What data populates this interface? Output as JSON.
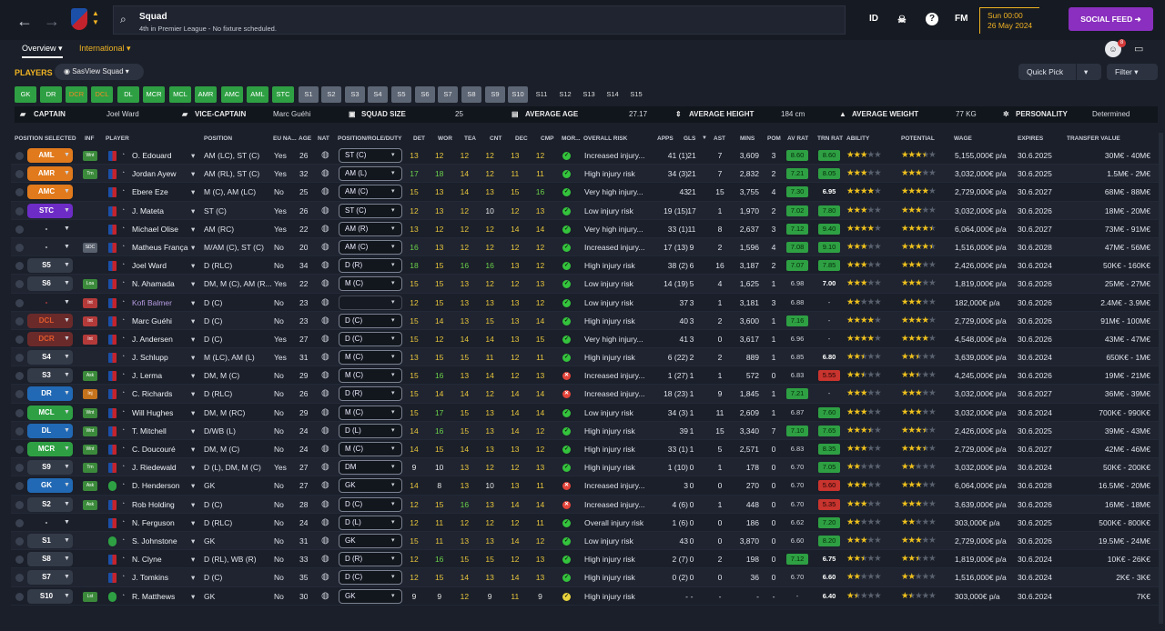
{
  "header": {
    "title": "Squad",
    "subtitle": "4th in Premier League - No fixture scheduled.",
    "icons": [
      "back-arrow-icon",
      "forward-arrow-icon",
      "club-crest-icon",
      "search-icon"
    ],
    "id_label": "ID",
    "fm_label": "FM",
    "date_line1": "Sun 00:00",
    "date_line2": "26 May 2024",
    "feed_label": "SOCIAL FEED",
    "notif_count": "8"
  },
  "tabs": {
    "overview": "Overview",
    "international": "International"
  },
  "toolbar": {
    "players": "PLAYERS",
    "view": "SasView Squad",
    "quick_pick": "Quick Pick",
    "filter": "Filter"
  },
  "slots": [
    "GK",
    "DR",
    "DCR",
    "DCL",
    "DL",
    "MCR",
    "MCL",
    "AMR",
    "AMC",
    "AML",
    "STC",
    "S1",
    "S2",
    "S3",
    "S4",
    "S5",
    "S6",
    "S7",
    "S8",
    "S9",
    "S10",
    "S11",
    "S12",
    "S13",
    "S14",
    "S15"
  ],
  "info": {
    "captain_lbl": "CAPTAIN",
    "captain": "Joel Ward",
    "vice_lbl": "VICE-CAPTAIN",
    "vice": "Marc Guéhi",
    "size_lbl": "SQUAD SIZE",
    "size": "25",
    "age_lbl": "AVERAGE AGE",
    "age": "27.17",
    "height_lbl": "AVERAGE HEIGHT",
    "height": "184 cm",
    "weight_lbl": "AVERAGE WEIGHT",
    "weight": "77 KG",
    "pers_lbl": "PERSONALITY",
    "pers": "Determined"
  },
  "columns": [
    "POSITION SELECTED",
    "INF",
    "PLAYER",
    "POSITION",
    "EU NA...",
    "AGE",
    "NAT",
    "POSITION/ROLE/DUTY",
    "DET",
    "WOR",
    "TEA",
    "CNT",
    "DEC",
    "CMP",
    "MOR...",
    "OVERALL RISK",
    "APPS",
    "GLS",
    "AST",
    "MINS",
    "POM",
    "AV RAT",
    "TRN RAT",
    "ABILITY",
    "POTENTIAL",
    "WAGE",
    "EXPIRES",
    "TRANSFER VALUE"
  ],
  "players": [
    {
      "sel": "AML",
      "selc": "orange",
      "inf": "Wnt",
      "infc": "green",
      "name": "O. Edouard",
      "pos": "AM (LC), ST (C)",
      "eu": "Yes",
      "age": "26",
      "role": "ST (C)",
      "det": "13",
      "wor": "12",
      "tea": "12",
      "cnt": "12",
      "dec": "13",
      "cmp": "12",
      "mor": "good",
      "risk": "Increased injury...",
      "apps": "41 (1)",
      "gls": "21",
      "ast": "7",
      "mins": "3,609",
      "pom": "3",
      "avr": "8.60",
      "avrc": "green",
      "trn": "8.60",
      "trnc": "green",
      "ab": 3,
      "pot": 3.5,
      "wage": "5,155,000€ p/a",
      "exp": "30.6.2025",
      "val": "30M€ - 40M€"
    },
    {
      "sel": "AMR",
      "selc": "orange",
      "inf": "Trn",
      "infc": "green",
      "name": "Jordan Ayew",
      "pos": "AM (RL), ST (C)",
      "eu": "Yes",
      "age": "32",
      "role": "AM (L)",
      "det": "17",
      "wor": "18",
      "tea": "14",
      "cnt": "12",
      "dec": "11",
      "cmp": "11",
      "mor": "good",
      "risk": "High injury risk",
      "apps": "34 (3)",
      "gls": "21",
      "ast": "7",
      "mins": "2,832",
      "pom": "2",
      "avr": "7.21",
      "avrc": "green",
      "trn": "8.05",
      "trnc": "green",
      "ab": 3,
      "pot": 3,
      "wage": "3,032,000€ p/a",
      "exp": "30.6.2025",
      "val": "1.5M€ - 2M€"
    },
    {
      "sel": "AMC",
      "selc": "orange",
      "inf": "",
      "infc": "",
      "name": "Ebere Eze",
      "pos": "M (C), AM (LC)",
      "eu": "No",
      "age": "25",
      "role": "AM (C)",
      "det": "15",
      "wor": "13",
      "tea": "14",
      "cnt": "13",
      "dec": "15",
      "cmp": "16",
      "mor": "good",
      "risk": "Very high injury...",
      "apps": "43",
      "gls": "21",
      "ast": "15",
      "mins": "3,755",
      "pom": "4",
      "avr": "7.30",
      "avrc": "green",
      "trn": "6.95",
      "trnc": "bold",
      "ab": 4,
      "pot": 4,
      "wage": "2,729,000€ p/a",
      "exp": "30.6.2027",
      "val": "68M€ - 88M€"
    },
    {
      "sel": "STC",
      "selc": "purple",
      "inf": "",
      "infc": "",
      "name": "J. Mateta",
      "pos": "ST (C)",
      "eu": "Yes",
      "age": "26",
      "role": "ST (C)",
      "det": "12",
      "wor": "13",
      "tea": "12",
      "cnt": "10",
      "dec": "12",
      "cmp": "13",
      "mor": "good",
      "risk": "Low injury risk",
      "apps": "19 (15)",
      "gls": "17",
      "ast": "1",
      "mins": "1,970",
      "pom": "2",
      "avr": "7.02",
      "avrc": "green",
      "trn": "7.80",
      "trnc": "green",
      "ab": 3,
      "pot": 3,
      "wage": "3,032,000€ p/a",
      "exp": "30.6.2026",
      "val": "18M€ - 20M€"
    },
    {
      "sel": "-",
      "selc": "dash",
      "inf": "",
      "infc": "",
      "name": "Michael Olise",
      "pos": "AM (RC)",
      "eu": "Yes",
      "age": "22",
      "role": "AM (R)",
      "det": "13",
      "wor": "12",
      "tea": "12",
      "cnt": "12",
      "dec": "14",
      "cmp": "14",
      "mor": "good",
      "risk": "Very high injury...",
      "apps": "33 (1)",
      "gls": "11",
      "ast": "8",
      "mins": "2,637",
      "pom": "3",
      "avr": "7.12",
      "avrc": "green",
      "trn": "9.40",
      "trnc": "green",
      "ab": 4,
      "pot": 4.5,
      "wage": "6,064,000€ p/a",
      "exp": "30.6.2027",
      "val": "73M€ - 91M€"
    },
    {
      "sel": "-",
      "selc": "dash",
      "inf": "SDC",
      "infc": "grey",
      "name": "Matheus França",
      "pos": "M/AM (C), ST (C)",
      "eu": "No",
      "age": "20",
      "role": "AM (C)",
      "det": "16",
      "wor": "13",
      "tea": "12",
      "cnt": "12",
      "dec": "12",
      "cmp": "12",
      "mor": "good",
      "risk": "Increased injury...",
      "apps": "17 (13)",
      "gls": "9",
      "ast": "2",
      "mins": "1,596",
      "pom": "4",
      "avr": "7.08",
      "avrc": "green",
      "trn": "9.10",
      "trnc": "green",
      "ab": 3,
      "pot": 4.5,
      "wage": "1,516,000€ p/a",
      "exp": "30.6.2028",
      "val": "47M€ - 56M€"
    },
    {
      "sel": "S5",
      "selc": "grey",
      "inf": "",
      "infc": "",
      "name": "Joel Ward",
      "pos": "D (RLC)",
      "eu": "No",
      "age": "34",
      "role": "D (R)",
      "det": "18",
      "wor": "15",
      "tea": "16",
      "cnt": "16",
      "dec": "13",
      "cmp": "12",
      "mor": "good",
      "risk": "High injury risk",
      "apps": "38 (2)",
      "gls": "6",
      "ast": "16",
      "mins": "3,187",
      "pom": "2",
      "avr": "7.07",
      "avrc": "green",
      "trn": "7.85",
      "trnc": "green",
      "ab": 3,
      "pot": 3,
      "wage": "2,426,000€ p/a",
      "exp": "30.6.2024",
      "val": "50K€ - 160K€"
    },
    {
      "sel": "S6",
      "selc": "grey",
      "inf": "Loa",
      "infc": "green",
      "name": "N. Ahamada",
      "pos": "DM, M (C), AM (R...",
      "eu": "Yes",
      "age": "22",
      "role": "M (C)",
      "det": "15",
      "wor": "15",
      "tea": "13",
      "cnt": "12",
      "dec": "12",
      "cmp": "13",
      "mor": "good",
      "risk": "Low injury risk",
      "apps": "14 (19)",
      "gls": "5",
      "ast": "4",
      "mins": "1,625",
      "pom": "1",
      "avr": "6.98",
      "avrc": "plain",
      "trn": "7.00",
      "trnc": "bold",
      "ab": 3,
      "pot": 3,
      "wage": "1,819,000€ p/a",
      "exp": "30.6.2026",
      "val": "25M€ - 27M€"
    },
    {
      "sel": "-",
      "selc": "ghost",
      "inf": "Int",
      "infc": "red",
      "name": "Kofi Balmer",
      "pos": "D (C)",
      "eu": "No",
      "age": "23",
      "role": "",
      "det": "12",
      "wor": "15",
      "tea": "13",
      "cnt": "13",
      "dec": "13",
      "cmp": "12",
      "mor": "good",
      "risk": "Low injury risk",
      "apps": "37",
      "gls": "3",
      "ast": "1",
      "mins": "3,181",
      "pom": "3",
      "avr": "6.88",
      "avrc": "plain",
      "trn": "-",
      "trnc": "plain",
      "ab": 2,
      "pot": 3,
      "wage": "182,000€ p/a",
      "exp": "30.6.2026",
      "val": "2.4M€ - 3.9M€"
    },
    {
      "sel": "DCL",
      "selc": "red",
      "inf": "Int",
      "infc": "red",
      "name": "Marc Guéhi",
      "pos": "D (C)",
      "eu": "No",
      "age": "23",
      "role": "D (C)",
      "det": "15",
      "wor": "14",
      "tea": "13",
      "cnt": "15",
      "dec": "13",
      "cmp": "14",
      "mor": "good",
      "risk": "High injury risk",
      "apps": "40",
      "gls": "3",
      "ast": "2",
      "mins": "3,600",
      "pom": "1",
      "avr": "7.16",
      "avrc": "green",
      "trn": "-",
      "trnc": "plain",
      "ab": 4,
      "pot": 4,
      "wage": "2,729,000€ p/a",
      "exp": "30.6.2026",
      "val": "91M€ - 100M€"
    },
    {
      "sel": "DCR",
      "selc": "red",
      "inf": "Int",
      "infc": "red",
      "name": "J. Andersen",
      "pos": "D (C)",
      "eu": "Yes",
      "age": "27",
      "role": "D (C)",
      "det": "15",
      "wor": "12",
      "tea": "14",
      "cnt": "14",
      "dec": "13",
      "cmp": "15",
      "mor": "good",
      "risk": "Very high injury...",
      "apps": "41",
      "gls": "3",
      "ast": "0",
      "mins": "3,617",
      "pom": "1",
      "avr": "6.96",
      "avrc": "plain",
      "trn": "-",
      "trnc": "plain",
      "ab": 4,
      "pot": 4,
      "wage": "4,548,000€ p/a",
      "exp": "30.6.2026",
      "val": "43M€ - 47M€"
    },
    {
      "sel": "S4",
      "selc": "grey",
      "inf": "",
      "infc": "",
      "name": "J. Schlupp",
      "pos": "M (LC), AM (L)",
      "eu": "Yes",
      "age": "31",
      "role": "M (C)",
      "det": "13",
      "wor": "15",
      "tea": "15",
      "cnt": "11",
      "dec": "12",
      "cmp": "11",
      "mor": "good",
      "risk": "High injury risk",
      "apps": "6 (22)",
      "gls": "2",
      "ast": "2",
      "mins": "889",
      "pom": "1",
      "avr": "6.85",
      "avrc": "plain",
      "trn": "6.80",
      "trnc": "bold",
      "ab": 2.5,
      "pot": 2.5,
      "wage": "3,639,000€ p/a",
      "exp": "30.6.2024",
      "val": "650K€ - 1M€"
    },
    {
      "sel": "S3",
      "selc": "grey",
      "inf": "Ask",
      "infc": "green",
      "name": "J. Lerma",
      "pos": "DM, M (C)",
      "eu": "No",
      "age": "29",
      "role": "M (C)",
      "det": "15",
      "wor": "16",
      "tea": "13",
      "cnt": "14",
      "dec": "12",
      "cmp": "13",
      "mor": "bad",
      "risk": "Increased injury...",
      "apps": "1 (27)",
      "gls": "1",
      "ast": "1",
      "mins": "572",
      "pom": "0",
      "avr": "6.83",
      "avrc": "plain",
      "trn": "5.55",
      "trnc": "red",
      "ab": 2.5,
      "pot": 2.5,
      "wage": "4,245,000€ p/a",
      "exp": "30.6.2026",
      "val": "19M€ - 21M€"
    },
    {
      "sel": "DR",
      "selc": "blue",
      "inf": "Inj",
      "infc": "orange",
      "name": "C. Richards",
      "pos": "D (RLC)",
      "eu": "No",
      "age": "26",
      "role": "D (R)",
      "det": "15",
      "wor": "14",
      "tea": "14",
      "cnt": "12",
      "dec": "14",
      "cmp": "14",
      "mor": "bad",
      "risk": "Increased injury...",
      "apps": "18 (23)",
      "gls": "1",
      "ast": "9",
      "mins": "1,845",
      "pom": "1",
      "avr": "7.21",
      "avrc": "green",
      "trn": "-",
      "trnc": "plain",
      "ab": 3,
      "pot": 3,
      "wage": "3,032,000€ p/a",
      "exp": "30.6.2027",
      "val": "36M€ - 39M€"
    },
    {
      "sel": "MCL",
      "selc": "green",
      "inf": "Wnt",
      "infc": "green",
      "name": "Will Hughes",
      "pos": "DM, M (RC)",
      "eu": "No",
      "age": "29",
      "role": "M (C)",
      "det": "15",
      "wor": "17",
      "tea": "15",
      "cnt": "13",
      "dec": "14",
      "cmp": "14",
      "mor": "good",
      "risk": "Low injury risk",
      "apps": "34 (3)",
      "gls": "1",
      "ast": "11",
      "mins": "2,609",
      "pom": "1",
      "avr": "6.87",
      "avrc": "plain",
      "trn": "7.60",
      "trnc": "green",
      "ab": 3,
      "pot": 3,
      "wage": "3,032,000€ p/a",
      "exp": "30.6.2024",
      "val": "700K€ - 990K€"
    },
    {
      "sel": "DL",
      "selc": "blue",
      "inf": "Wnt",
      "infc": "green",
      "name": "T. Mitchell",
      "pos": "D/WB (L)",
      "eu": "No",
      "age": "24",
      "role": "D (L)",
      "det": "14",
      "wor": "16",
      "tea": "15",
      "cnt": "13",
      "dec": "14",
      "cmp": "12",
      "mor": "good",
      "risk": "High injury risk",
      "apps": "39",
      "gls": "1",
      "ast": "15",
      "mins": "3,340",
      "pom": "7",
      "avr": "7.10",
      "avrc": "green",
      "trn": "7.65",
      "trnc": "green",
      "ab": 3.5,
      "pot": 3.5,
      "wage": "2,426,000€ p/a",
      "exp": "30.6.2025",
      "val": "39M€ - 43M€"
    },
    {
      "sel": "MCR",
      "selc": "green",
      "inf": "Wnt",
      "infc": "green",
      "name": "C. Doucouré",
      "pos": "DM, M (C)",
      "eu": "No",
      "age": "24",
      "role": "M (C)",
      "det": "14",
      "wor": "15",
      "tea": "14",
      "cnt": "13",
      "dec": "13",
      "cmp": "12",
      "mor": "good",
      "risk": "High injury risk",
      "apps": "33 (1)",
      "gls": "1",
      "ast": "5",
      "mins": "2,571",
      "pom": "0",
      "avr": "6.83",
      "avrc": "plain",
      "trn": "8.35",
      "trnc": "green",
      "ab": 3,
      "pot": 3.5,
      "wage": "2,729,000€ p/a",
      "exp": "30.6.2027",
      "val": "42M€ - 46M€"
    },
    {
      "sel": "S9",
      "selc": "grey",
      "inf": "Trn",
      "infc": "green",
      "name": "J. Riedewald",
      "pos": "D (L), DM, M (C)",
      "eu": "Yes",
      "age": "27",
      "role": "DM",
      "det": "9",
      "wor": "10",
      "tea": "13",
      "cnt": "12",
      "dec": "12",
      "cmp": "13",
      "mor": "good",
      "risk": "High injury risk",
      "apps": "1 (10)",
      "gls": "0",
      "ast": "1",
      "mins": "178",
      "pom": "0",
      "avr": "6.70",
      "avrc": "plain",
      "trn": "7.05",
      "trnc": "green",
      "ab": 2,
      "pot": 2,
      "wage": "3,032,000€ p/a",
      "exp": "30.6.2024",
      "val": "50K€ - 200K€"
    },
    {
      "sel": "GK",
      "selc": "blue",
      "inf": "Ask",
      "infc": "green",
      "name": "D. Henderson",
      "pos": "GK",
      "eu": "No",
      "age": "27",
      "role": "GK",
      "det": "14",
      "wor": "8",
      "tea": "13",
      "cnt": "10",
      "dec": "13",
      "cmp": "11",
      "mor": "bad",
      "risk": "Increased injury...",
      "apps": "3",
      "gls": "0",
      "ast": "0",
      "mins": "270",
      "pom": "0",
      "avr": "6.70",
      "avrc": "plain",
      "trn": "5.60",
      "trnc": "red",
      "ab": 3,
      "pot": 3,
      "wage": "6,064,000€ p/a",
      "exp": "30.6.2028",
      "val": "16.5M€ - 20M€",
      "gk": true
    },
    {
      "sel": "S2",
      "selc": "grey",
      "inf": "Ask",
      "infc": "green",
      "name": "Rob Holding",
      "pos": "D (C)",
      "eu": "No",
      "age": "28",
      "role": "D (C)",
      "det": "12",
      "wor": "15",
      "tea": "16",
      "cnt": "13",
      "dec": "14",
      "cmp": "14",
      "mor": "bad",
      "risk": "Increased injury...",
      "apps": "4 (6)",
      "gls": "0",
      "ast": "1",
      "mins": "448",
      "pom": "0",
      "avr": "6.70",
      "avrc": "plain",
      "trn": "5.35",
      "trnc": "red",
      "ab": 3,
      "pot": 3,
      "wage": "3,639,000€ p/a",
      "exp": "30.6.2026",
      "val": "16M€ - 18M€"
    },
    {
      "sel": "-",
      "selc": "dash",
      "inf": "",
      "infc": "",
      "name": "N. Ferguson",
      "pos": "D (RLC)",
      "eu": "No",
      "age": "24",
      "role": "D (L)",
      "det": "12",
      "wor": "11",
      "tea": "12",
      "cnt": "12",
      "dec": "12",
      "cmp": "11",
      "mor": "good",
      "risk": "Overall injury risk",
      "apps": "1 (6)",
      "gls": "0",
      "ast": "0",
      "mins": "186",
      "pom": "0",
      "avr": "6.62",
      "avrc": "plain",
      "trn": "7.20",
      "trnc": "green",
      "ab": 2,
      "pot": 2,
      "wage": "303,000€ p/a",
      "exp": "30.6.2025",
      "val": "500K€ - 800K€"
    },
    {
      "sel": "S1",
      "selc": "grey",
      "inf": "",
      "infc": "",
      "name": "S. Johnstone",
      "pos": "GK",
      "eu": "No",
      "age": "31",
      "role": "GK",
      "det": "15",
      "wor": "11",
      "tea": "13",
      "cnt": "13",
      "dec": "14",
      "cmp": "12",
      "mor": "good",
      "risk": "Low injury risk",
      "apps": "43",
      "gls": "0",
      "ast": "0",
      "mins": "3,870",
      "pom": "0",
      "avr": "6.60",
      "avrc": "plain",
      "trn": "8.20",
      "trnc": "green",
      "ab": 3,
      "pot": 3,
      "wage": "2,729,000€ p/a",
      "exp": "30.6.2026",
      "val": "19.5M€ - 24M€",
      "gk": true
    },
    {
      "sel": "S8",
      "selc": "grey",
      "inf": "",
      "infc": "",
      "name": "N. Clyne",
      "pos": "D (RL), WB (R)",
      "eu": "No",
      "age": "33",
      "role": "D (R)",
      "det": "12",
      "wor": "16",
      "tea": "15",
      "cnt": "15",
      "dec": "12",
      "cmp": "13",
      "mor": "good",
      "risk": "High injury risk",
      "apps": "2 (7)",
      "gls": "0",
      "ast": "2",
      "mins": "198",
      "pom": "0",
      "avr": "7.12",
      "avrc": "green",
      "trn": "6.75",
      "trnc": "bold",
      "ab": 2.5,
      "pot": 2.5,
      "wage": "1,819,000€ p/a",
      "exp": "30.6.2024",
      "val": "10K€ - 26K€"
    },
    {
      "sel": "S7",
      "selc": "grey",
      "inf": "",
      "infc": "",
      "name": "J. Tomkins",
      "pos": "D (C)",
      "eu": "No",
      "age": "35",
      "role": "D (C)",
      "det": "12",
      "wor": "15",
      "tea": "14",
      "cnt": "13",
      "dec": "14",
      "cmp": "13",
      "mor": "good",
      "risk": "High injury risk",
      "apps": "0 (2)",
      "gls": "0",
      "ast": "0",
      "mins": "36",
      "pom": "0",
      "avr": "6.70",
      "avrc": "plain",
      "trn": "6.60",
      "trnc": "bold",
      "ab": 2,
      "pot": 2,
      "wage": "1,516,000€ p/a",
      "exp": "30.6.2024",
      "val": "2K€ - 3K€"
    },
    {
      "sel": "S10",
      "selc": "grey",
      "inf": "Lst",
      "infc": "green",
      "name": "R. Matthews",
      "pos": "GK",
      "eu": "No",
      "age": "30",
      "role": "GK",
      "det": "9",
      "wor": "9",
      "tea": "12",
      "cnt": "9",
      "dec": "11",
      "cmp": "9",
      "mor": "ok",
      "risk": "High injury risk",
      "apps": "-",
      "gls": "-",
      "ast": "-",
      "mins": "-",
      "pom": "-",
      "avr": "-",
      "avrc": "plain",
      "trn": "6.40",
      "trnc": "bold",
      "ab": 1.5,
      "pot": 1.5,
      "wage": "303,000€ p/a",
      "exp": "30.6.2024",
      "val": "7K€",
      "gk": true
    }
  ]
}
